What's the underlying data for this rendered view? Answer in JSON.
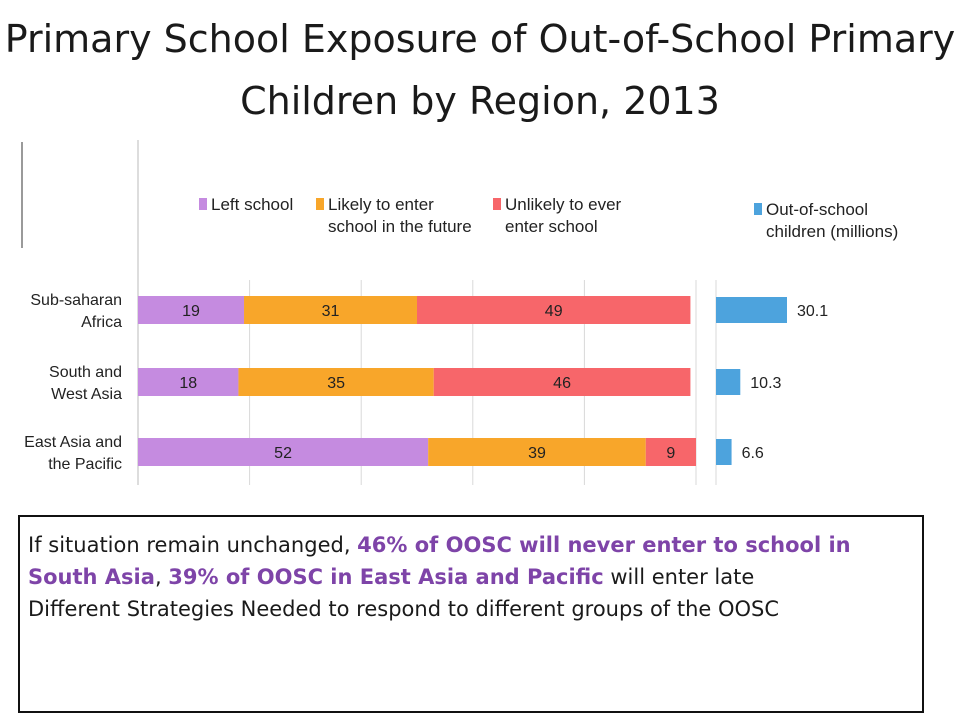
{
  "title": "Primary School Exposure of Out-of-School Primary Children by Region, 2013",
  "chart_data": [
    {
      "type": "bar",
      "orientation": "horizontal",
      "stacked": true,
      "categories": [
        "Sub-saharan Africa",
        "South and West Asia",
        "East Asia and the Pacific"
      ],
      "series": [
        {
          "name": "Left school",
          "color": "#c58be0",
          "values": [
            19,
            18,
            52
          ]
        },
        {
          "name": "Likely to enter school in the future",
          "color": "#f8a62a",
          "values": [
            31,
            35,
            39
          ]
        },
        {
          "name": "Unlikely to ever enter school",
          "color": "#f7666a",
          "values": [
            49,
            46,
            9
          ]
        }
      ],
      "xlim": [
        0,
        100
      ],
      "grid": true,
      "legend": "top"
    },
    {
      "type": "bar",
      "orientation": "horizontal",
      "categories": [
        "Sub-saharan Africa",
        "South and West Asia",
        "East Asia and the Pacific"
      ],
      "series": [
        {
          "name": "Out-of-school children (millions)",
          "color": "#4da3dd",
          "values": [
            30.1,
            10.3,
            6.6
          ]
        }
      ],
      "legend": "top"
    }
  ],
  "legend_items": [
    {
      "lines": [
        "Left school"
      ],
      "color": "#c58be0"
    },
    {
      "lines": [
        "Likely to enter",
        "school in the future"
      ],
      "color": "#f8a62a"
    },
    {
      "lines": [
        "Unlikely to ever",
        "enter school"
      ],
      "color": "#f7666a"
    },
    {
      "lines": [
        "Out-of-school",
        "children (millions)"
      ],
      "color": "#4da3dd"
    }
  ],
  "row_labels": [
    [
      "Sub-saharan",
      "Africa"
    ],
    [
      "South and",
      "West Asia"
    ],
    [
      "East Asia and",
      "the Pacific"
    ]
  ],
  "callout": {
    "p1_a": "If situation remain unchanged, ",
    "p1_b": "46% of OOSC will never enter to school in South Asia",
    "p1_c": ", ",
    "p1_d": "39% of OOSC in East Asia and Pacific",
    "p1_e": " will enter late",
    "p2": "Different Strategies Needed to respond to different groups of the OOSC"
  }
}
